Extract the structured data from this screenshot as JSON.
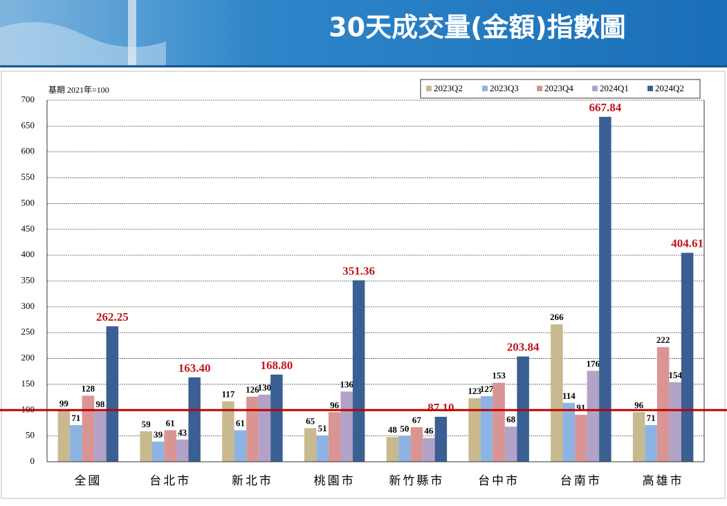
{
  "chart_data": {
    "type": "bar",
    "title": "30天成交量(金額)指數圖",
    "annotation": "基期 2021年=100",
    "categories": [
      "全國",
      "台北市",
      "新北市",
      "桃園市",
      "新竹縣市",
      "台中市",
      "台南市",
      "高雄市"
    ],
    "series": [
      {
        "name": "2023Q2",
        "color": "#c9b98f",
        "values": [
          99,
          59,
          117,
          65,
          48,
          123,
          266,
          96
        ]
      },
      {
        "name": "2023Q3",
        "color": "#8db3e2",
        "values": [
          71,
          39,
          61,
          51,
          50,
          127,
          114,
          71
        ]
      },
      {
        "name": "2023Q4",
        "color": "#d99594",
        "values": [
          128,
          61,
          126,
          96,
          67,
          153,
          91,
          222
        ]
      },
      {
        "name": "2024Q1",
        "color": "#b3a2c7",
        "values": [
          98,
          43,
          130,
          136,
          46,
          68,
          176,
          154
        ]
      },
      {
        "name": "2024Q2",
        "color": "#3a5f92",
        "values": [
          262.25,
          163.4,
          168.8,
          351.36,
          87.1,
          203.84,
          667.84,
          404.61
        ],
        "value_labels": [
          "262.25",
          "163.40",
          "168.80",
          "351.36",
          "87.10",
          "203.84",
          "667.84",
          "404.61"
        ],
        "label_color": "#c0161c"
      }
    ],
    "ylim": [
      0,
      700
    ],
    "yticks": [
      0,
      50,
      100,
      150,
      200,
      250,
      300,
      350,
      400,
      450,
      500,
      550,
      600,
      650,
      700
    ],
    "grid": true,
    "reference_line": {
      "value": 100,
      "color": "#c00000"
    },
    "legend": "top-right"
  }
}
